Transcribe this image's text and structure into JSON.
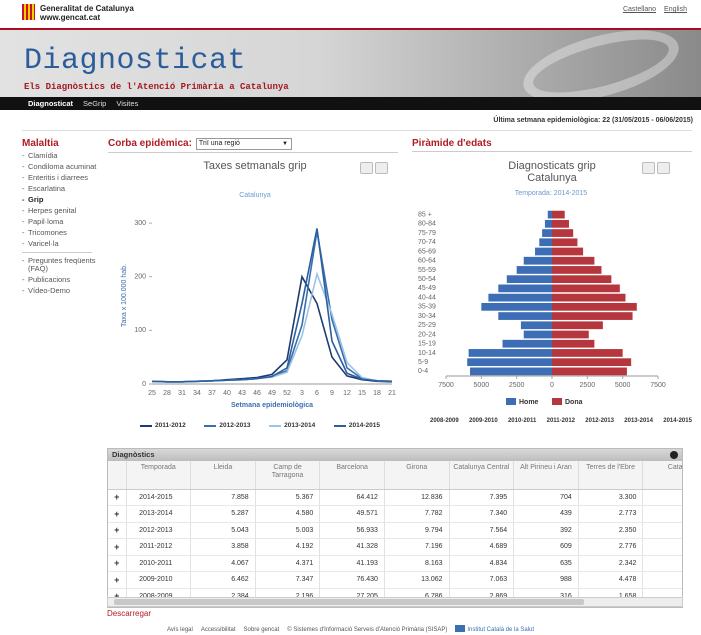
{
  "header": {
    "org": "Generalitat de Catalunya",
    "url": "www.gencat.cat",
    "langs": [
      "Castellano",
      "English"
    ],
    "title": "Diagnosticat",
    "subtitle": "Els Diagnòstics de l'Atenció Primària a Catalunya",
    "nav": [
      "Diagnosticat",
      "SeGrip",
      "Visites"
    ],
    "week_info": "Última setmana epidemiològica: 22 (31/05/2015 - 06/06/2015)"
  },
  "sidebar": {
    "title": "Malaltia",
    "items": [
      "Clamídia",
      "Condiloma acuminat",
      "Enteritis i diarrees",
      "Escarlatina",
      "Grip",
      "Herpes genital",
      "Papil·loma",
      "Tricomones",
      "Varicel·la"
    ],
    "active": "Grip",
    "links": [
      "Preguntes freqüents (FAQ)",
      "Publicacions",
      "Vídeo-Demo"
    ]
  },
  "curve": {
    "heading": "Corba epidèmica:",
    "select": "Triï una regió",
    "chart": {
      "type": "line",
      "title": "Taxes setmanals grip",
      "subtitle": "Catalunya",
      "y_label": "Taxa x 100.000 hab.",
      "x_label": "Setmana epidemiològica",
      "categories": [
        "25",
        "28",
        "31",
        "34",
        "37",
        "40",
        "43",
        "46",
        "49",
        "52",
        "3",
        "6",
        "9",
        "12",
        "15",
        "18",
        "21"
      ],
      "ylim": [
        0,
        330
      ],
      "yticks": [
        0,
        100,
        200,
        300
      ],
      "series": [
        {
          "name": "2011-2012",
          "color": "#1f3a73",
          "values": [
            5,
            4,
            4,
            5,
            6,
            8,
            10,
            12,
            18,
            45,
            200,
            150,
            50,
            15,
            8,
            5,
            4
          ]
        },
        {
          "name": "2012-2013",
          "color": "#3a6fb0",
          "values": [
            5,
            4,
            4,
            5,
            6,
            7,
            8,
            10,
            14,
            25,
            110,
            285,
            120,
            30,
            10,
            6,
            5
          ]
        },
        {
          "name": "2013-2014",
          "color": "#9cc3e6",
          "values": [
            5,
            4,
            4,
            5,
            6,
            7,
            8,
            10,
            13,
            22,
            90,
            205,
            130,
            40,
            12,
            6,
            5
          ]
        },
        {
          "name": "2014-2015",
          "color": "#2c5f9e",
          "values": [
            5,
            4,
            4,
            5,
            6,
            7,
            8,
            10,
            14,
            30,
            150,
            290,
            80,
            20,
            9,
            6,
            5
          ]
        }
      ]
    }
  },
  "pyramid": {
    "heading": "Piràmide d'edats",
    "chart": {
      "type": "bar",
      "orientation": "horizontal",
      "title": "Diagnosticats grip Catalunya",
      "subtitle": "Temporada: 2014-2015",
      "categories": [
        "0-4",
        "5-9",
        "10-14",
        "15-19",
        "20-24",
        "25-29",
        "30-34",
        "35-39",
        "40-44",
        "45-49",
        "50-54",
        "55-59",
        "60-64",
        "65-69",
        "70-74",
        "75-79",
        "80-84",
        "85 +"
      ],
      "xlim": [
        -7500,
        7500
      ],
      "xticks": [
        {
          "value": -7500,
          "label": "7500"
        },
        {
          "value": -5000,
          "label": "5000"
        },
        {
          "value": -2500,
          "label": "2500"
        },
        0,
        2500,
        5000,
        7500
      ],
      "series": [
        {
          "name": "Home",
          "color": "#3d6db5",
          "values": [
            -5800,
            -6000,
            -5900,
            -3500,
            -2000,
            -2200,
            -3800,
            -5000,
            -4500,
            -3800,
            -3200,
            -2500,
            -2000,
            -1200,
            -900,
            -700,
            -500,
            -300
          ]
        },
        {
          "name": "Dona",
          "color": "#b5373d",
          "values": [
            5300,
            5600,
            5000,
            3000,
            2600,
            3600,
            5700,
            6000,
            5200,
            4800,
            4200,
            3500,
            3000,
            2200,
            1800,
            1500,
            1200,
            900
          ]
        }
      ]
    },
    "seasons": [
      "2008-2009",
      "2009-2010",
      "2010-2011",
      "2011-2012",
      "2012-2013",
      "2013-2014",
      "2014-2015"
    ]
  },
  "table": {
    "title": "Diagnòstics",
    "columns": [
      "Temporada",
      "Lleida",
      "Camp de Tarragona",
      "Barcelona",
      "Girona",
      "Catalunya Central",
      "Alt Pirineu i Aran",
      "Terres de l'Ebre",
      "Cata"
    ],
    "rows": [
      [
        "2014-2015",
        "7.858",
        "5.367",
        "64.412",
        "12.836",
        "7.395",
        "704",
        "3.300"
      ],
      [
        "2013-2014",
        "5.287",
        "4.580",
        "49.571",
        "7.782",
        "7.340",
        "439",
        "2.773"
      ],
      [
        "2012-2013",
        "5.043",
        "5.003",
        "56.933",
        "9.794",
        "7.564",
        "392",
        "2.350"
      ],
      [
        "2011-2012",
        "3.858",
        "4.192",
        "41.328",
        "7.196",
        "4.689",
        "609",
        "2.776"
      ],
      [
        "2010-2011",
        "4.067",
        "4.371",
        "41.193",
        "8.163",
        "4.834",
        "635",
        "2.342"
      ],
      [
        "2009-2010",
        "6.462",
        "7.347",
        "76.430",
        "13.062",
        "7.063",
        "988",
        "4.478"
      ],
      [
        "2008-2009",
        "2.384",
        "2.196",
        "27.205",
        "6.786",
        "2.869",
        "316",
        "1.658"
      ]
    ]
  },
  "download": "Descarregar",
  "footer": {
    "links": [
      "Avís legal",
      "Accessibilitat",
      "Sobre gencat",
      "© Sistemes d'Informació Serveis d'Atenció Primària (SISAP)"
    ],
    "ics": "Institut Català de la Salut"
  }
}
